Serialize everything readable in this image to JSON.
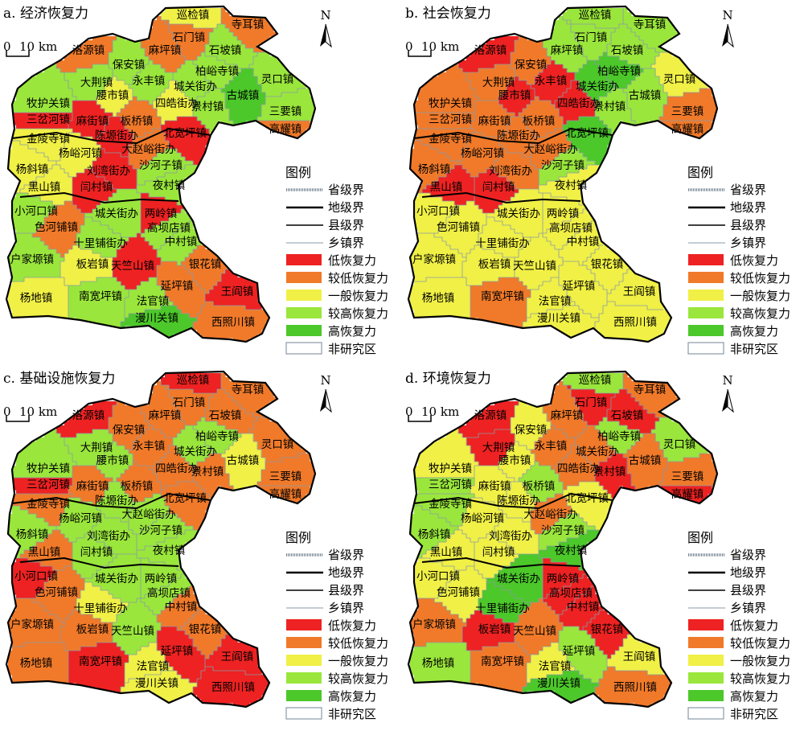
{
  "panels": [
    {
      "id": "a",
      "title": "a. 经济恢复力"
    },
    {
      "id": "b",
      "title": "b. 社会恢复力"
    },
    {
      "id": "c",
      "title": "c. 基础设施恢复力"
    },
    {
      "id": "d",
      "title": "d. 环境恢复力"
    }
  ],
  "north_label": "N",
  "scale_bar": {
    "zero": "0",
    "distance": "10 km"
  },
  "legend": {
    "title": "图例",
    "boundaries": [
      {
        "label": "省级界",
        "style": "province"
      },
      {
        "label": "地级界",
        "style": "prefecture"
      },
      {
        "label": "县级界",
        "style": "county"
      },
      {
        "label": "乡镇界",
        "style": "township"
      }
    ],
    "classes": [
      {
        "label": "低恢复力",
        "color": "#ee2222"
      },
      {
        "label": "较低恢复力",
        "color": "#f07a2a"
      },
      {
        "label": "一般恢复力",
        "color": "#f0f046"
      },
      {
        "label": "较高恢复力",
        "color": "#9ae63c"
      },
      {
        "label": "高恢复力",
        "color": "#4cc82a"
      },
      {
        "label": "非研究区",
        "color": "#ffffff"
      }
    ]
  },
  "towns": [
    "巡检镇",
    "寺耳镇",
    "石门镇",
    "洛源镇",
    "麻坪镇",
    "石坡镇",
    "保安镇",
    "柏峪寺镇",
    "灵口镇",
    "永丰镇",
    "城关街办",
    "大荆镇",
    "古城镇",
    "腰市镇",
    "四皓街办",
    "景村镇",
    "牧护关镇",
    "三要镇",
    "三岔河镇",
    "麻街镇",
    "板桥镇",
    "高耀镇",
    "陈塬街办",
    "北宽坪镇",
    "金陵寺镇",
    "大赵峪街办",
    "杨峪河镇",
    "沙河子镇",
    "杨斜镇",
    "刘湾街办",
    "夜村镇",
    "黑山镇",
    "闫村镇",
    "小河口镇",
    "城关街办",
    "两岭镇",
    "色河铺镇",
    "高坝店镇",
    "十里铺街办",
    "中村镇",
    "户家塬镇",
    "板岩镇",
    "天竺山镇",
    "银花镇",
    "延坪镇",
    "王阎镇",
    "杨地镇",
    "南宽坪镇",
    "法官镇",
    "漫川关镇",
    "西照川镇"
  ],
  "town_classes": {
    "a": [
      "yellow",
      "orange",
      "orange",
      "orange",
      "orange",
      "lgreen",
      "lgreen",
      "lgreen",
      "lgreen",
      "lgreen",
      "lgreen",
      "lgreen",
      "green",
      "yellow",
      "yellow",
      "lgreen",
      "lgreen",
      "lgreen",
      "red",
      "red",
      "orange",
      "orange",
      "red",
      "red",
      "yellow",
      "orange",
      "yellow",
      "lgreen",
      "yellow",
      "red",
      "lgreen",
      "yellow",
      "red",
      "lgreen",
      "lgreen",
      "red",
      "orange",
      "lgreen",
      "lgreen",
      "lgreen",
      "lgreen",
      "yellow",
      "red",
      "orange",
      "orange",
      "red",
      "yellow",
      "lgreen",
      "lgreen",
      "green",
      "orange"
    ],
    "b": [
      "lgreen",
      "lgreen",
      "lgreen",
      "red",
      "lgreen",
      "lgreen",
      "orange",
      "green",
      "yellow",
      "red",
      "green",
      "orange",
      "lgreen",
      "red",
      "red",
      "lgreen",
      "orange",
      "orange",
      "orange",
      "orange",
      "orange",
      "orange",
      "orange",
      "green",
      "orange",
      "orange",
      "orange",
      "lgreen",
      "orange",
      "orange",
      "yellow",
      "red",
      "red",
      "yellow",
      "yellow",
      "yellow",
      "yellow",
      "yellow",
      "yellow",
      "yellow",
      "yellow",
      "yellow",
      "yellow",
      "yellow",
      "yellow",
      "yellow",
      "yellow",
      "orange",
      "yellow",
      "yellow",
      "yellow"
    ],
    "c": [
      "red",
      "orange",
      "orange",
      "red",
      "orange",
      "orange",
      "orange",
      "lgreen",
      "orange",
      "orange",
      "lgreen",
      "lgreen",
      "yellow",
      "lgreen",
      "orange",
      "orange",
      "lgreen",
      "orange",
      "red",
      "orange",
      "orange",
      "orange",
      "lgreen",
      "orange",
      "orange",
      "lgreen",
      "lgreen",
      "lgreen",
      "lgreen",
      "lgreen",
      "lgreen",
      "orange",
      "lgreen",
      "red",
      "lgreen",
      "lgreen",
      "orange",
      "lgreen",
      "yellow",
      "orange",
      "orange",
      "orange",
      "lgreen",
      "orange",
      "red",
      "red",
      "orange",
      "red",
      "yellow",
      "yellow",
      "red"
    ],
    "d": [
      "lgreen",
      "orange",
      "red",
      "red",
      "orange",
      "red",
      "yellow",
      "lgreen",
      "lgreen",
      "orange",
      "orange",
      "red",
      "orange",
      "yellow",
      "orange",
      "red",
      "yellow",
      "orange",
      "lgreen",
      "yellow",
      "lgreen",
      "red",
      "yellow",
      "yellow",
      "lgreen",
      "orange",
      "yellow",
      "lgreen",
      "lgreen",
      "yellow",
      "green",
      "yellow",
      "yellow",
      "yellow",
      "green",
      "red",
      "yellow",
      "red",
      "green",
      "red",
      "orange",
      "red",
      "orange",
      "red",
      "lgreen",
      "yellow",
      "lgreen",
      "orange",
      "yellow",
      "green",
      "orange"
    ]
  }
}
